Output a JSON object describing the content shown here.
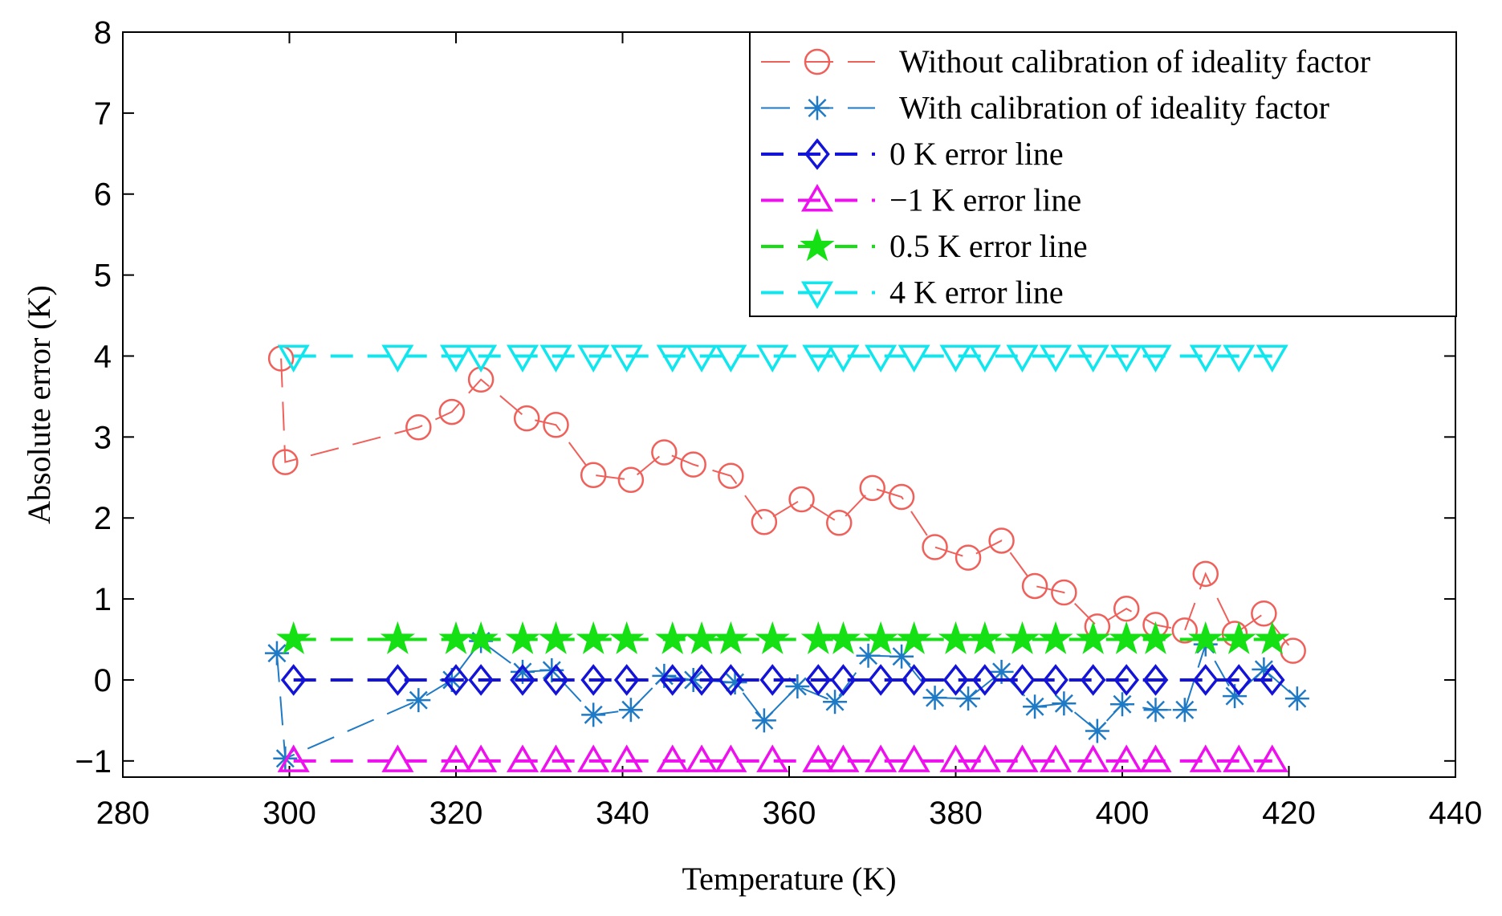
{
  "chart_data": {
    "type": "line",
    "title": "",
    "xlabel": "Temperature (K)",
    "ylabel": "Absolute error (K)",
    "xlim": [
      280,
      440
    ],
    "ylim": [
      -1.2,
      8
    ],
    "xticks": [
      280,
      300,
      320,
      340,
      360,
      380,
      400,
      420,
      440
    ],
    "yticks": [
      -1,
      0,
      1,
      2,
      3,
      4,
      5,
      6,
      7,
      8
    ],
    "xtick_labels": [
      "280",
      "300",
      "320",
      "340",
      "360",
      "380",
      "400",
      "420",
      "440"
    ],
    "ytick_labels": [
      "−1",
      "0",
      "1",
      "2",
      "3",
      "4",
      "5",
      "6",
      "7",
      "8"
    ],
    "grid": false,
    "legend_position": "top-right",
    "series": [
      {
        "name": "Without calibration of ideality factor",
        "color": "#f0605a",
        "marker": "circle",
        "line_style": "dashed",
        "line_width": "thin",
        "x": [
          299,
          299.5,
          315.5,
          319.5,
          323,
          328.5,
          332,
          336.5,
          341,
          345,
          348.5,
          353,
          357,
          361.5,
          366,
          370,
          373.5,
          377.5,
          381.5,
          385.5,
          389.5,
          393,
          397,
          400.5,
          404,
          407.5,
          410,
          413.5,
          417,
          420.5
        ],
        "values": [
          3.97,
          2.69,
          3.12,
          3.31,
          3.71,
          3.23,
          3.15,
          2.53,
          2.47,
          2.81,
          2.66,
          2.52,
          1.95,
          2.23,
          1.94,
          2.37,
          2.26,
          1.64,
          1.51,
          1.72,
          1.16,
          1.08,
          0.66,
          0.88,
          0.68,
          0.61,
          1.31,
          0.57,
          0.82,
          0.36
        ]
      },
      {
        "name": "With calibration of ideality factor",
        "color": "#1f7ac6",
        "marker": "asterisk",
        "line_style": "dashed",
        "line_width": "thin",
        "x": [
          298.5,
          299.5,
          315.5,
          319.5,
          323,
          328,
          331.5,
          336.5,
          341,
          345,
          348.5,
          353.5,
          357,
          361,
          365.5,
          369.5,
          373.5,
          377.5,
          381.5,
          385.5,
          389.5,
          393,
          397,
          400,
          404,
          407.5,
          410,
          413.5,
          417,
          421
        ],
        "values": [
          0.33,
          -0.97,
          -0.25,
          0.0,
          0.48,
          0.1,
          0.12,
          -0.43,
          -0.37,
          0.05,
          0.0,
          -0.03,
          -0.5,
          -0.08,
          -0.27,
          0.3,
          0.29,
          -0.22,
          -0.23,
          0.1,
          -0.33,
          -0.29,
          -0.63,
          -0.3,
          -0.37,
          -0.37,
          0.44,
          -0.2,
          0.13,
          -0.23
        ]
      },
      {
        "name": "0 K error line",
        "color": "#1414d8",
        "marker": "diamond",
        "line_style": "dashed",
        "line_width": "thick",
        "x": [
          300.5,
          313,
          320,
          323,
          328,
          332,
          336.5,
          340.5,
          346,
          349.5,
          353,
          358,
          363.5,
          366.5,
          371,
          375,
          380,
          383.5,
          388,
          392,
          396.5,
          400.5,
          404,
          410,
          414,
          418
        ],
        "values": [
          0,
          0,
          0,
          0,
          0,
          0,
          0,
          0,
          0,
          0,
          0,
          0,
          0,
          0,
          0,
          0,
          0,
          0,
          0,
          0,
          0,
          0,
          0,
          0,
          0,
          0
        ]
      },
      {
        "name": "−1 K error line",
        "color": "#ee10ee",
        "marker": "triangle-up",
        "line_style": "dashed",
        "line_width": "thick",
        "x": [
          300.5,
          313,
          320,
          323,
          328,
          332,
          336.5,
          340.5,
          346,
          349.5,
          353,
          358,
          363.5,
          366.5,
          371,
          375,
          380,
          383.5,
          388,
          392,
          396.5,
          400.5,
          404,
          410,
          414,
          418
        ],
        "values": [
          -1,
          -1,
          -1,
          -1,
          -1,
          -1,
          -1,
          -1,
          -1,
          -1,
          -1,
          -1,
          -1,
          -1,
          -1,
          -1,
          -1,
          -1,
          -1,
          -1,
          -1,
          -1,
          -1,
          -1,
          -1,
          -1
        ]
      },
      {
        "name": "0.5 K error line",
        "color": "#14e014",
        "marker": "star",
        "line_style": "dashed",
        "line_width": "thick",
        "x": [
          300.5,
          313,
          320,
          323,
          328,
          332,
          336.5,
          340.5,
          346,
          349.5,
          353,
          358,
          363.5,
          366.5,
          371,
          375,
          380,
          383.5,
          388,
          392,
          396.5,
          400.5,
          404,
          410,
          414,
          418
        ],
        "values": [
          0.5,
          0.5,
          0.5,
          0.5,
          0.5,
          0.5,
          0.5,
          0.5,
          0.5,
          0.5,
          0.5,
          0.5,
          0.5,
          0.5,
          0.5,
          0.5,
          0.5,
          0.5,
          0.5,
          0.5,
          0.5,
          0.5,
          0.5,
          0.5,
          0.5,
          0.5
        ]
      },
      {
        "name": "4 K error line",
        "color": "#10e6ee",
        "marker": "triangle-down",
        "line_style": "dashed",
        "line_width": "thick",
        "x": [
          300.5,
          313,
          320,
          323,
          328,
          332,
          336.5,
          340.5,
          346,
          349.5,
          353,
          358,
          363.5,
          366.5,
          371,
          375,
          380,
          383.5,
          388,
          392,
          396.5,
          400.5,
          404,
          410,
          414,
          418
        ],
        "values": [
          4,
          4,
          4,
          4,
          4,
          4,
          4,
          4,
          4,
          4,
          4,
          4,
          4,
          4,
          4,
          4,
          4,
          4,
          4,
          4,
          4,
          4,
          4,
          4,
          4,
          4
        ]
      }
    ]
  }
}
